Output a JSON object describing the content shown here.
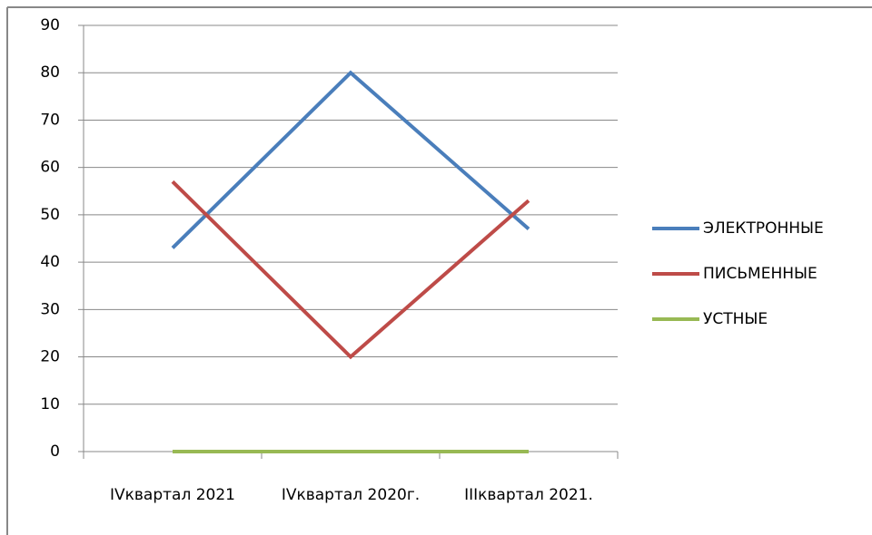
{
  "chart_data": {
    "type": "line",
    "categories": [
      "IVквартал 2021",
      "IVквартал 2020г.",
      "IIIквартал 2021."
    ],
    "series": [
      {
        "name": "ЭЛЕКТРОННЫЕ",
        "color": "#4a7ebb",
        "values": [
          43,
          80,
          47
        ]
      },
      {
        "name": "ПИСЬМЕННЫЕ",
        "color": "#be4b48",
        "values": [
          57,
          20,
          53
        ]
      },
      {
        "name": "УСТНЫЕ",
        "color": "#98b954",
        "values": [
          0,
          0,
          0
        ]
      }
    ],
    "ylim": [
      0,
      90
    ],
    "yticks": [
      0,
      10,
      20,
      30,
      40,
      50,
      60,
      70,
      80,
      90
    ],
    "grid": true,
    "legend": "right"
  }
}
